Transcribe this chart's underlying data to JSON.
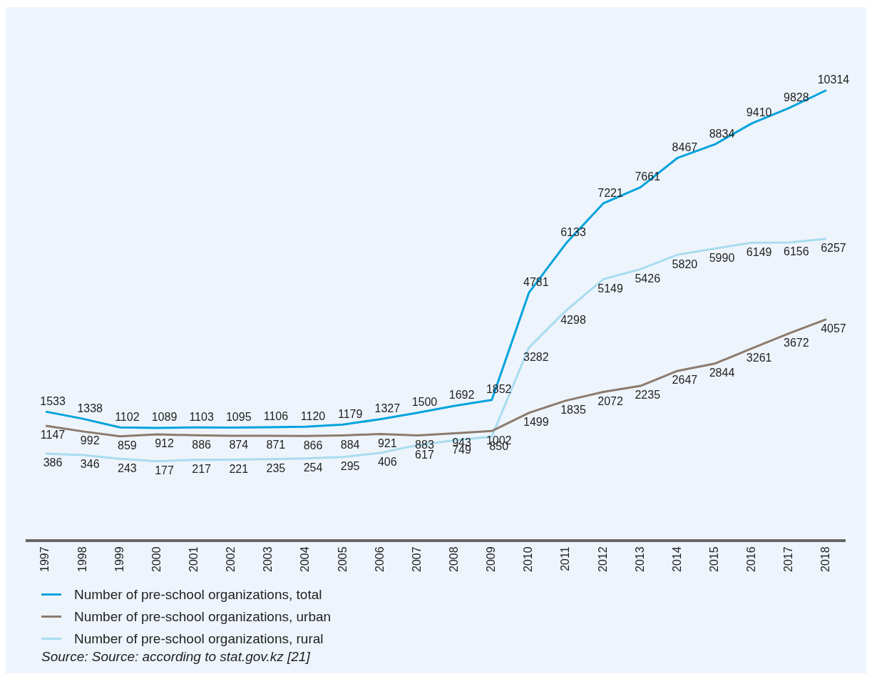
{
  "chart_data": {
    "type": "line",
    "categories": [
      "1997",
      "1998",
      "1999",
      "2000",
      "2001",
      "2002",
      "2003",
      "2004",
      "2005",
      "2006",
      "2007",
      "2008",
      "2009",
      "2010",
      "2011",
      "2012",
      "2013",
      "2014",
      "2015",
      "2016",
      "2017",
      "2018"
    ],
    "series": [
      {
        "name": "Number of pre-school organizations, total",
        "color": "#00a3dd",
        "values": [
          1533,
          1338,
          1102,
          1089,
          1103,
          1095,
          1106,
          1120,
          1179,
          1327,
          1500,
          1692,
          1852,
          4781,
          6133,
          7221,
          7661,
          8467,
          8834,
          9410,
          9828,
          10314
        ]
      },
      {
        "name": "Number of pre-school organizations, urban",
        "color": "#8b7b6e",
        "values": [
          1147,
          992,
          859,
          912,
          886,
          874,
          871,
          866,
          884,
          921,
          883,
          943,
          1002,
          1499,
          1835,
          2072,
          2235,
          2647,
          2844,
          3261,
          3672,
          4057
        ]
      },
      {
        "name": "Number of pre-school organizations, rural",
        "color": "#a8dcef",
        "values": [
          386,
          346,
          243,
          177,
          217,
          221,
          235,
          254,
          295,
          406,
          617,
          749,
          850,
          3282,
          4298,
          5149,
          5426,
          5820,
          5990,
          6149,
          6156,
          6257
        ]
      }
    ],
    "data_labels": true,
    "legend": "bottom",
    "grid": false,
    "marker": "none",
    "line_style": "solid",
    "annotations": [
      "Source: Source: according to stat.gov.kz [21]"
    ]
  }
}
